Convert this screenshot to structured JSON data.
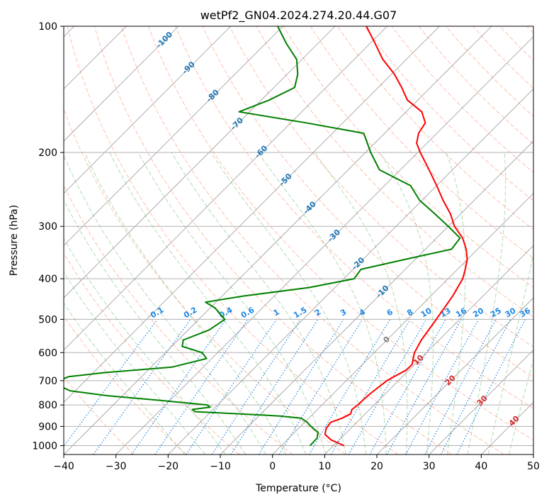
{
  "chart_data": {
    "type": "line",
    "title": "wetPf2_GN04.2024.274.20.44.G07",
    "xlabel": "Temperature (°C)",
    "ylabel": "Pressure (hPa)",
    "xlim": [
      -40,
      50
    ],
    "ylim": [
      1050,
      100
    ],
    "yscale": "log",
    "skew": 45,
    "grid": true,
    "x_ticks": [
      -40,
      -30,
      -20,
      -10,
      0,
      10,
      20,
      30,
      40,
      50
    ],
    "y_ticks": [
      100,
      200,
      300,
      400,
      500,
      600,
      700,
      800,
      900,
      1000
    ],
    "series": [
      {
        "color": "#ff0000",
        "points": [
          [
            1000,
            12.0
          ],
          [
            970,
            8.5
          ],
          [
            940,
            6.2
          ],
          [
            910,
            5.3
          ],
          [
            880,
            5.0
          ],
          [
            860,
            6.4
          ],
          [
            840,
            7.2
          ],
          [
            820,
            6.6
          ],
          [
            800,
            6.9
          ],
          [
            780,
            6.9
          ],
          [
            750,
            7.1
          ],
          [
            720,
            7.5
          ],
          [
            700,
            7.8
          ],
          [
            680,
            8.6
          ],
          [
            660,
            9.5
          ],
          [
            640,
            9.5
          ],
          [
            620,
            8.6
          ],
          [
            600,
            7.7
          ],
          [
            560,
            6.6
          ],
          [
            520,
            5.9
          ],
          [
            480,
            5.1
          ],
          [
            440,
            4.2
          ],
          [
            400,
            2.8
          ],
          [
            380,
            1.5
          ],
          [
            360,
            0.0
          ],
          [
            340,
            -2.2
          ],
          [
            320,
            -5.0
          ],
          [
            300,
            -8.8
          ],
          [
            280,
            -12.0
          ],
          [
            260,
            -16.0
          ],
          [
            240,
            -20.0
          ],
          [
            220,
            -24.5
          ],
          [
            200,
            -29.5
          ],
          [
            190,
            -32.0
          ],
          [
            180,
            -33.5
          ],
          [
            170,
            -34.2
          ],
          [
            160,
            -37.0
          ],
          [
            150,
            -42.0
          ],
          [
            140,
            -45.5
          ],
          [
            130,
            -49.5
          ],
          [
            120,
            -54.5
          ],
          [
            110,
            -59.0
          ],
          [
            100,
            -64.0
          ]
        ]
      },
      {
        "color": "#008000",
        "points": [
          [
            1000,
            5.5
          ],
          [
            960,
            5.4
          ],
          [
            930,
            4.5
          ],
          [
            900,
            2.0
          ],
          [
            880,
            0.5
          ],
          [
            860,
            -1.5
          ],
          [
            850,
            -6.0
          ],
          [
            840,
            -14.0
          ],
          [
            830,
            -23.0
          ],
          [
            820,
            -24.0
          ],
          [
            810,
            -21.0
          ],
          [
            800,
            -22.0
          ],
          [
            780,
            -32.0
          ],
          [
            760,
            -43.0
          ],
          [
            740,
            -51.0
          ],
          [
            720,
            -54.0
          ],
          [
            700,
            -55.0
          ],
          [
            685,
            -54.0
          ],
          [
            670,
            -48.0
          ],
          [
            650,
            -36.0
          ],
          [
            620,
            -31.0
          ],
          [
            600,
            -33.0
          ],
          [
            580,
            -38.0
          ],
          [
            560,
            -39.0
          ],
          [
            530,
            -36.0
          ],
          [
            500,
            -35.0
          ],
          [
            470,
            -39.0
          ],
          [
            455,
            -42.0
          ],
          [
            440,
            -36.0
          ],
          [
            420,
            -25.0
          ],
          [
            400,
            -18.0
          ],
          [
            380,
            -18.5
          ],
          [
            360,
            -12.0
          ],
          [
            340,
            -5.0
          ],
          [
            320,
            -5.5
          ],
          [
            300,
            -10.0
          ],
          [
            280,
            -15.0
          ],
          [
            260,
            -20.5
          ],
          [
            240,
            -25.0
          ],
          [
            220,
            -34.0
          ],
          [
            200,
            -39.0
          ],
          [
            180,
            -44.0
          ],
          [
            170,
            -57.0
          ],
          [
            160,
            -72.0
          ],
          [
            150,
            -68.5
          ],
          [
            140,
            -66.0
          ],
          [
            130,
            -68.0
          ],
          [
            120,
            -71.0
          ],
          [
            110,
            -76.0
          ],
          [
            100,
            -81.0
          ]
        ]
      }
    ],
    "mixing_ratio_labels": [
      "0.1",
      "0.2",
      "0.4",
      "0.6",
      "1",
      "1.5",
      "2",
      "3",
      "4",
      "6",
      "8",
      "10",
      "13",
      "16",
      "20",
      "25",
      "30",
      "36"
    ],
    "isotherm_labels": [
      "-100",
      "-90",
      "-80",
      "-70",
      "-60",
      "-50",
      "-40",
      "-30",
      "-20",
      "-10",
      "0",
      "10",
      "20",
      "30",
      "40"
    ],
    "colors": {
      "temperature": "#ff0000",
      "dewpoint": "#008000",
      "isotherm_label": "#1f77b4",
      "warm_label": "#d62728",
      "zero_label": "#808080",
      "mixing_ratio": "#1e88e5",
      "dry_adiabat": "#fd8d6c",
      "moist_adiabat": "#7cc47c",
      "isotherm": "#9a9a9a"
    }
  }
}
